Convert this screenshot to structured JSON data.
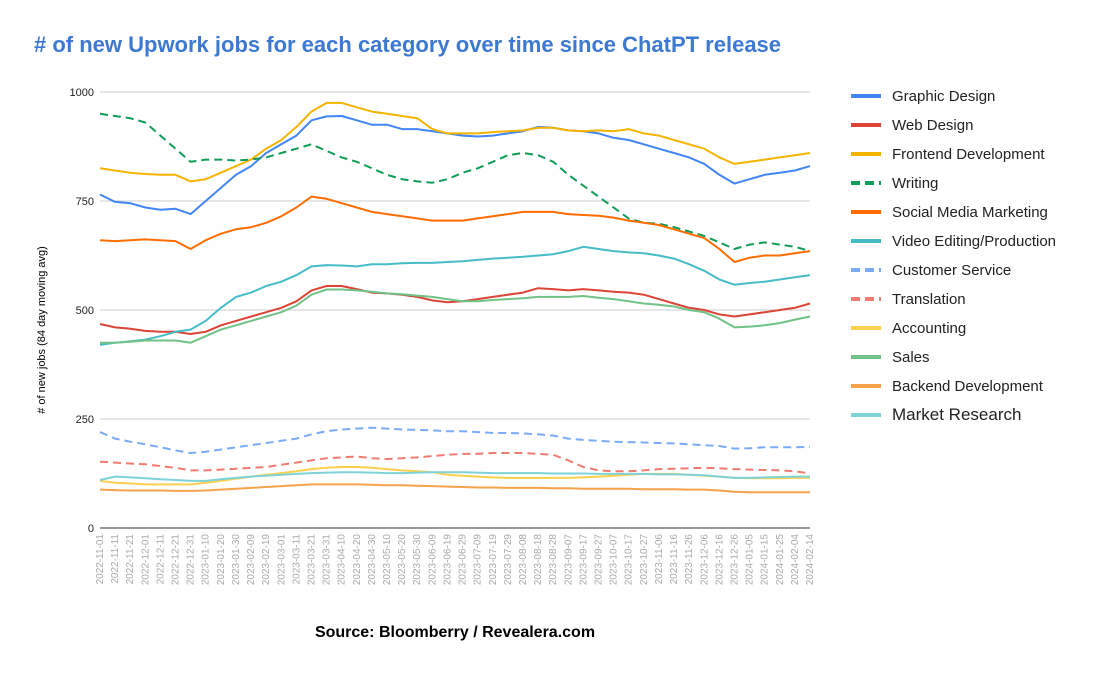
{
  "title": "# of new Upwork jobs for each category over time since ChatPT release",
  "source": "Source: Bloomberry / Revealera.com",
  "chart_data": {
    "type": "line",
    "title": "# of new Upwork jobs for each category over time since ChatPT release",
    "ylabel": "# of new jobs (84 day moving avg)",
    "xlabel": "",
    "ylim": [
      0,
      1000
    ],
    "yticks": [
      "1000",
      "750",
      "500",
      "250",
      "0"
    ],
    "grid": true,
    "legend_position": "right",
    "x": [
      "2022-11-01",
      "2022-11-11",
      "2022-11-21",
      "2022-12-01",
      "2022-12-11",
      "2022-12-21",
      "2022-12-31",
      "2023-01-10",
      "2023-01-20",
      "2023-01-30",
      "2023-02-09",
      "2023-02-19",
      "2023-03-01",
      "2023-03-11",
      "2023-03-21",
      "2023-03-31",
      "2023-04-10",
      "2023-04-20",
      "2023-04-30",
      "2023-05-10",
      "2023-05-20",
      "2023-05-30",
      "2023-06-09",
      "2023-06-19",
      "2023-06-29",
      "2023-07-09",
      "2023-07-19",
      "2023-07-29",
      "2023-08-08",
      "2023-08-18",
      "2023-08-28",
      "2023-09-07",
      "2023-09-17",
      "2023-09-27",
      "2023-10-07",
      "2023-10-17",
      "2023-10-27",
      "2023-11-06",
      "2023-11-16",
      "2023-11-26",
      "2023-12-06",
      "2023-12-16",
      "2023-12-26",
      "2024-01-05",
      "2024-01-15",
      "2024-01-25",
      "2024-02-04",
      "2024-02-14"
    ],
    "series": [
      {
        "name": "Graphic Design",
        "color": "#4285f4",
        "dash": false,
        "values": [
          765,
          748,
          745,
          735,
          730,
          732,
          720,
          750,
          780,
          810,
          830,
          860,
          880,
          900,
          935,
          944,
          945,
          935,
          925,
          925,
          915,
          915,
          910,
          905,
          900,
          898,
          900,
          905,
          910,
          920,
          918,
          912,
          910,
          905,
          895,
          890,
          880,
          870,
          860,
          850,
          835,
          810,
          790,
          800,
          810,
          815,
          820,
          830
        ]
      },
      {
        "name": "Web Design",
        "color": "#db4437",
        "dash": false,
        "values": [
          468,
          460,
          457,
          452,
          450,
          450,
          445,
          450,
          465,
          475,
          485,
          495,
          505,
          520,
          545,
          555,
          555,
          548,
          540,
          538,
          535,
          530,
          522,
          518,
          520,
          525,
          530,
          535,
          540,
          550,
          548,
          545,
          548,
          545,
          542,
          540,
          535,
          525,
          515,
          505,
          500,
          490,
          485,
          490,
          495,
          500,
          505,
          515
        ]
      },
      {
        "name": "Frontend Development",
        "color": "#f4b400",
        "dash": false,
        "values": [
          825,
          820,
          815,
          812,
          810,
          810,
          795,
          800,
          815,
          830,
          845,
          870,
          890,
          920,
          955,
          975,
          975,
          965,
          955,
          950,
          945,
          940,
          915,
          905,
          905,
          905,
          908,
          910,
          912,
          918,
          918,
          912,
          910,
          912,
          910,
          915,
          905,
          900,
          890,
          880,
          870,
          850,
          835,
          840,
          845,
          850,
          855,
          860
        ]
      },
      {
        "name": "Writing",
        "color": "#0f9d58",
        "dash": true,
        "values": [
          950,
          945,
          940,
          930,
          900,
          870,
          840,
          845,
          845,
          843,
          845,
          850,
          860,
          870,
          880,
          865,
          850,
          840,
          825,
          810,
          800,
          795,
          792,
          800,
          815,
          825,
          840,
          855,
          860,
          855,
          840,
          810,
          785,
          760,
          735,
          710,
          700,
          698,
          690,
          680,
          670,
          655,
          640,
          650,
          655,
          650,
          645,
          635
        ]
      },
      {
        "name": "Social Media Marketing",
        "color": "#ff6d01",
        "dash": false,
        "values": [
          660,
          658,
          660,
          662,
          660,
          658,
          640,
          660,
          675,
          685,
          690,
          700,
          715,
          735,
          760,
          755,
          745,
          735,
          725,
          720,
          715,
          710,
          705,
          705,
          705,
          710,
          715,
          720,
          725,
          725,
          725,
          720,
          718,
          716,
          712,
          705,
          700,
          695,
          685,
          675,
          665,
          640,
          610,
          620,
          625,
          625,
          630,
          635
        ]
      },
      {
        "name": "Video Editing/Production",
        "color": "#46bdc6",
        "dash": false,
        "values": [
          420,
          425,
          428,
          432,
          440,
          450,
          455,
          475,
          505,
          530,
          540,
          555,
          565,
          580,
          600,
          603,
          602,
          600,
          605,
          605,
          607,
          608,
          608,
          610,
          612,
          615,
          618,
          620,
          622,
          625,
          628,
          635,
          645,
          640,
          635,
          632,
          630,
          625,
          618,
          605,
          590,
          570,
          558,
          562,
          565,
          570,
          575,
          580
        ]
      },
      {
        "name": "Customer Service",
        "color": "#7baaf7",
        "dash": true,
        "values": [
          220,
          205,
          198,
          192,
          185,
          178,
          172,
          175,
          180,
          185,
          190,
          195,
          200,
          205,
          215,
          222,
          226,
          228,
          230,
          228,
          226,
          225,
          224,
          222,
          222,
          220,
          218,
          218,
          217,
          215,
          212,
          205,
          202,
          200,
          198,
          197,
          196,
          195,
          194,
          192,
          190,
          188,
          182,
          183,
          185,
          185,
          185,
          186
        ]
      },
      {
        "name": "Translation",
        "color": "#f07b72",
        "dash": true,
        "values": [
          152,
          150,
          148,
          146,
          142,
          138,
          132,
          132,
          134,
          136,
          138,
          140,
          145,
          150,
          155,
          160,
          162,
          164,
          160,
          158,
          160,
          162,
          165,
          168,
          170,
          170,
          172,
          172,
          172,
          170,
          168,
          155,
          140,
          132,
          130,
          130,
          132,
          135,
          136,
          137,
          138,
          137,
          135,
          134,
          133,
          132,
          130,
          125
        ]
      },
      {
        "name": "Accounting",
        "color": "#fcd04f",
        "dash": false,
        "values": [
          108,
          104,
          102,
          100,
          100,
          100,
          100,
          104,
          108,
          113,
          118,
          122,
          126,
          130,
          135,
          138,
          140,
          140,
          138,
          135,
          132,
          130,
          128,
          122,
          120,
          118,
          116,
          115,
          115,
          115,
          115,
          115,
          116,
          118,
          120,
          122,
          124,
          124,
          124,
          122,
          120,
          118,
          115,
          114,
          114,
          114,
          115,
          115
        ]
      },
      {
        "name": "Sales",
        "color": "#71c287",
        "dash": false,
        "values": [
          425,
          425,
          427,
          430,
          430,
          430,
          425,
          440,
          455,
          465,
          475,
          485,
          495,
          510,
          535,
          547,
          547,
          545,
          542,
          538,
          536,
          533,
          530,
          525,
          520,
          520,
          523,
          525,
          527,
          530,
          530,
          530,
          532,
          528,
          525,
          520,
          515,
          512,
          508,
          500,
          495,
          480,
          460,
          462,
          465,
          470,
          478,
          485
        ]
      },
      {
        "name": "Backend Development",
        "color": "#f6a24b",
        "dash": false,
        "values": [
          88,
          87,
          86,
          86,
          86,
          85,
          85,
          86,
          88,
          90,
          92,
          94,
          96,
          98,
          100,
          100,
          100,
          100,
          99,
          98,
          98,
          97,
          96,
          95,
          94,
          93,
          93,
          92,
          92,
          92,
          91,
          91,
          90,
          90,
          90,
          90,
          89,
          89,
          89,
          88,
          88,
          86,
          83,
          82,
          82,
          82,
          82,
          82
        ]
      },
      {
        "name": "Market Research",
        "color": "#7fd3d8",
        "dash": false,
        "values": [
          110,
          118,
          116,
          114,
          112,
          110,
          108,
          108,
          112,
          115,
          118,
          120,
          122,
          124,
          126,
          127,
          128,
          128,
          127,
          126,
          126,
          127,
          128,
          128,
          128,
          127,
          126,
          126,
          126,
          126,
          125,
          125,
          125,
          124,
          124,
          124,
          124,
          123,
          123,
          122,
          121,
          118,
          115,
          115,
          116,
          117,
          118,
          118
        ]
      }
    ]
  }
}
